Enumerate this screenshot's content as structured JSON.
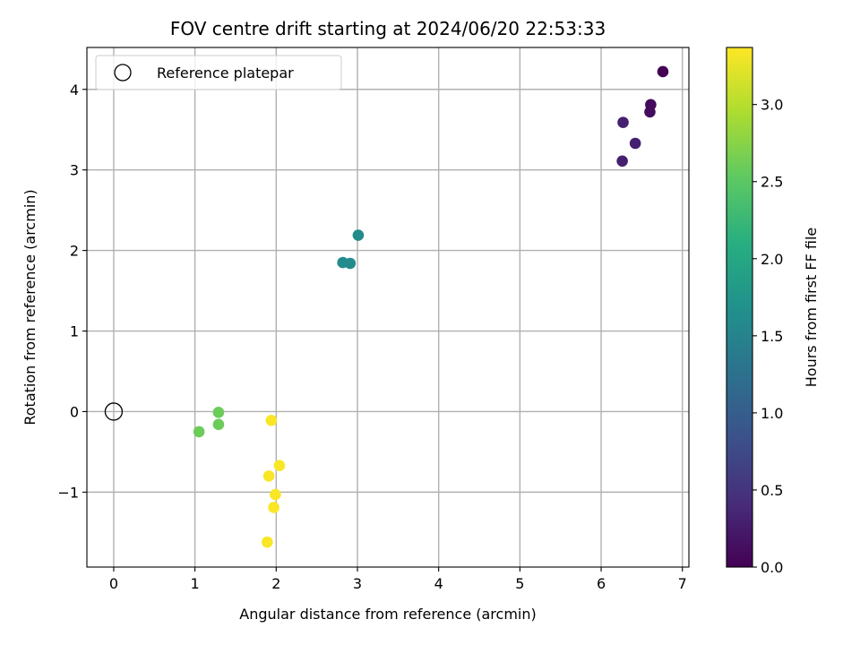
{
  "chart_data": {
    "type": "scatter",
    "title": "FOV centre drift starting at 2024/06/20 22:53:33",
    "xlabel": "Angular distance from reference (arcmin)",
    "ylabel": "Rotation from reference (arcmin)",
    "xlim": [
      -0.33,
      7.08
    ],
    "ylim": [
      -1.93,
      4.52
    ],
    "xticks": [
      0,
      1,
      2,
      3,
      4,
      5,
      6,
      7
    ],
    "xtick_labels": [
      "0",
      "1",
      "2",
      "3",
      "4",
      "5",
      "6",
      "7"
    ],
    "yticks": [
      -1,
      0,
      1,
      2,
      3,
      4
    ],
    "ytick_labels": [
      "−1",
      "0",
      "1",
      "2",
      "3",
      "4"
    ],
    "grid": true,
    "legend": {
      "placement": "top-left",
      "entries": [
        "Reference platepar"
      ]
    },
    "reference_point": {
      "x": 0,
      "y": 0
    },
    "colorbar": {
      "label": "Hours from first FF file",
      "range": [
        0.0,
        3.37
      ],
      "ticks": [
        0.0,
        0.5,
        1.0,
        1.5,
        2.0,
        2.5,
        3.0
      ],
      "tick_labels": [
        "0.0",
        "0.5",
        "1.0",
        "1.5",
        "2.0",
        "2.5",
        "3.0"
      ],
      "colormap": "viridis"
    },
    "points": [
      {
        "x": 6.76,
        "y": 4.22,
        "hours": 0.0
      },
      {
        "x": 6.61,
        "y": 3.81,
        "hours": 0.1
      },
      {
        "x": 6.6,
        "y": 3.72,
        "hours": 0.1
      },
      {
        "x": 6.27,
        "y": 3.59,
        "hours": 0.3
      },
      {
        "x": 6.42,
        "y": 3.33,
        "hours": 0.3
      },
      {
        "x": 6.26,
        "y": 3.11,
        "hours": 0.3
      },
      {
        "x": 2.82,
        "y": 1.85,
        "hours": 1.6
      },
      {
        "x": 2.91,
        "y": 1.84,
        "hours": 1.6
      },
      {
        "x": 3.01,
        "y": 2.19,
        "hours": 1.6
      },
      {
        "x": 1.05,
        "y": -0.25,
        "hours": 2.6
      },
      {
        "x": 1.29,
        "y": -0.01,
        "hours": 2.6
      },
      {
        "x": 1.29,
        "y": -0.16,
        "hours": 2.6
      },
      {
        "x": 1.94,
        "y": -0.11,
        "hours": 3.35
      },
      {
        "x": 1.91,
        "y": -0.8,
        "hours": 3.35
      },
      {
        "x": 2.04,
        "y": -0.67,
        "hours": 3.35
      },
      {
        "x": 1.99,
        "y": -1.03,
        "hours": 3.35
      },
      {
        "x": 1.97,
        "y": -1.19,
        "hours": 3.35
      },
      {
        "x": 1.89,
        "y": -1.62,
        "hours": 3.35
      }
    ]
  }
}
